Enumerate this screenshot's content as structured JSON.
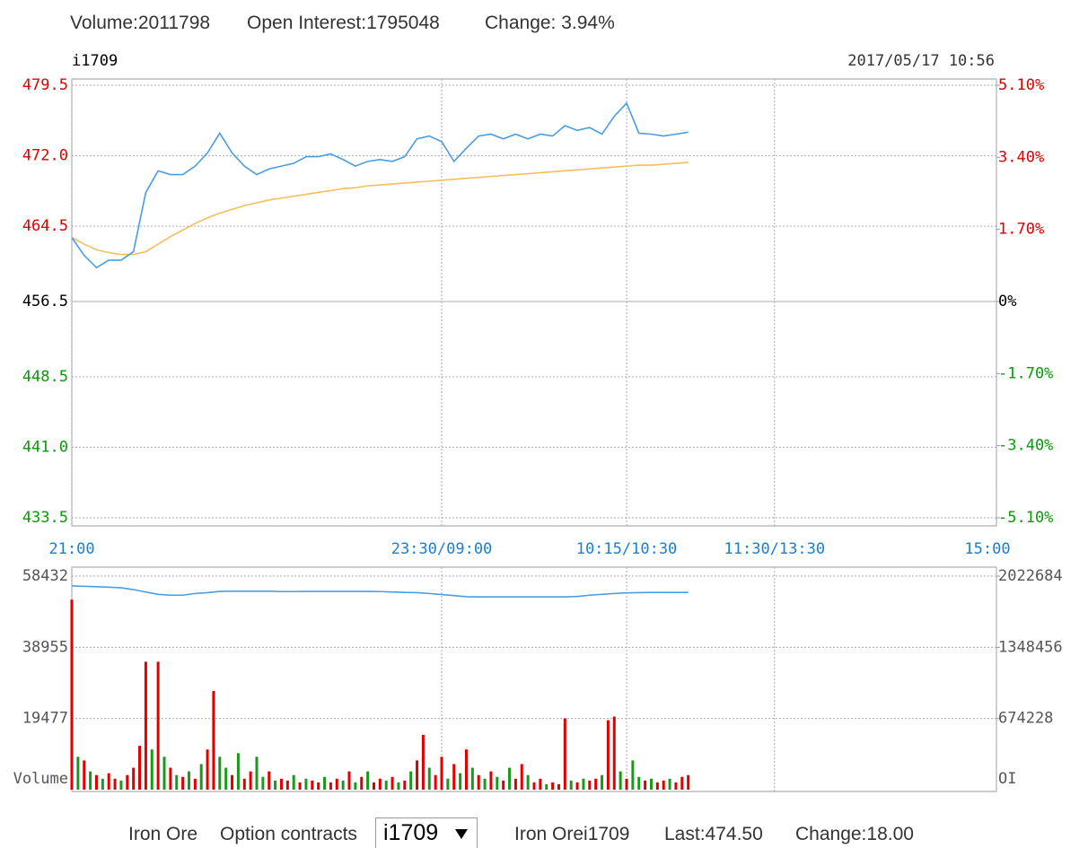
{
  "header": {
    "volume": "Volume:2011798",
    "open_interest": "Open Interest:1795048",
    "change": "Change: 3.94%"
  },
  "chart_data": [
    {
      "type": "line",
      "symbol": "i1709",
      "datetime": "2017/05/17 10:56",
      "x": [
        0,
        5,
        10,
        15,
        20,
        25,
        30,
        35,
        40,
        45,
        50,
        55,
        60,
        65,
        70,
        75,
        80,
        85,
        90,
        95,
        100,
        105,
        110,
        115,
        120,
        125,
        130,
        135,
        140,
        145,
        150,
        155,
        160,
        165,
        170,
        175,
        180,
        185,
        190,
        195,
        200,
        205,
        210,
        215,
        220,
        225,
        230,
        235,
        240,
        245,
        250
      ],
      "xlim": [
        0,
        375
      ],
      "xticks": [
        {
          "value": 0,
          "label": "21:00"
        },
        {
          "value": 150,
          "label": "23:30/09:00"
        },
        {
          "value": 225,
          "label": "10:15/10:30"
        },
        {
          "value": 285,
          "label": "11:30/13:30"
        },
        {
          "value": 375,
          "label": "15:00"
        }
      ],
      "ylim": [
        433.5,
        479.5
      ],
      "yticks": [
        433.5,
        {
          "value": 441,
          "label": "441.0"
        },
        448.5,
        456.5,
        464.5,
        {
          "value": 472,
          "label": "472.0"
        },
        479.5
      ],
      "y2lim": [
        -5.1,
        5.1
      ],
      "y2ticks": [
        {
          "value": -5.1,
          "label": "-5.10%"
        },
        {
          "value": -3.4,
          "label": "-3.40%"
        },
        {
          "value": -1.7,
          "label": "-1.70%"
        },
        {
          "value": 0,
          "label": "0%"
        },
        {
          "value": 1.7,
          "label": "1.70%"
        },
        {
          "value": 3.4,
          "label": "3.40%"
        },
        {
          "value": 5.1,
          "label": "5.10%"
        }
      ],
      "grid": true,
      "series": [
        {
          "color": "#4a9de0",
          "values": [
            463.3,
            461.4,
            460.1,
            460.9,
            460.9,
            461.8,
            468.1,
            470.4,
            470.0,
            470.0,
            470.9,
            472.3,
            474.4,
            472.3,
            470.9,
            470.0,
            470.6,
            470.9,
            471.2,
            471.9,
            471.9,
            472.2,
            471.6,
            470.9,
            471.4,
            471.6,
            471.4,
            471.9,
            473.8,
            474.1,
            473.5,
            471.4,
            472.8,
            474.1,
            474.3,
            473.8,
            474.3,
            473.8,
            474.3,
            474.1,
            475.2,
            474.7,
            475.0,
            474.3,
            476.2,
            477.6,
            474.4,
            474.3,
            474.1,
            474.3,
            474.5
          ]
        },
        {
          "color": "#f5bf5f",
          "values": [
            463.3,
            462.6,
            462.0,
            461.7,
            461.5,
            461.5,
            461.8,
            462.6,
            463.4,
            464.1,
            464.8,
            465.4,
            465.9,
            466.3,
            466.7,
            467.0,
            467.3,
            467.5,
            467.7,
            467.9,
            468.1,
            468.3,
            468.5,
            468.6,
            468.8,
            468.9,
            469.0,
            469.1,
            469.2,
            469.3,
            469.4,
            469.5,
            469.6,
            469.7,
            469.8,
            469.9,
            470.0,
            470.1,
            470.2,
            470.3,
            470.4,
            470.5,
            470.6,
            470.7,
            470.8,
            470.9,
            471.0,
            471.0,
            471.1,
            471.2,
            471.3
          ]
        }
      ]
    },
    {
      "type": "bar",
      "x": [
        0,
        2.5,
        5,
        7.5,
        10,
        12.5,
        15,
        17.5,
        20,
        22.5,
        25,
        27.5,
        30,
        32.5,
        35,
        37.5,
        40,
        42.5,
        45,
        47.5,
        50,
        52.5,
        55,
        57.5,
        60,
        62.5,
        65,
        67.5,
        70,
        72.5,
        75,
        77.5,
        80,
        82.5,
        85,
        87.5,
        90,
        92.5,
        95,
        97.5,
        100,
        102.5,
        105,
        107.5,
        110,
        112.5,
        115,
        117.5,
        120,
        122.5,
        125,
        127.5,
        130,
        132.5,
        135,
        137.5,
        140,
        142.5,
        145,
        147.5,
        150,
        152.5,
        155,
        157.5,
        160,
        162.5,
        165,
        167.5,
        170,
        172.5,
        175,
        177.5,
        180,
        182.5,
        185,
        187.5,
        190,
        192.5,
        195,
        197.5,
        200,
        202.5,
        205,
        207.5,
        210,
        212.5,
        215,
        217.5,
        220,
        222.5,
        225,
        227.5,
        230,
        232.5,
        235,
        237.5,
        240,
        242.5,
        245,
        247.5,
        250
      ],
      "values": [
        52000,
        9000,
        8000,
        5000,
        4000,
        3000,
        4500,
        3000,
        2500,
        4000,
        6000,
        12000,
        35000,
        11000,
        35000,
        9000,
        6000,
        4000,
        3500,
        5000,
        3000,
        7000,
        11000,
        27000,
        9000,
        6000,
        4000,
        10000,
        3000,
        5000,
        9000,
        3500,
        5000,
        2500,
        3000,
        2500,
        4000,
        2000,
        3000,
        2500,
        2000,
        3500,
        2000,
        3000,
        2500,
        5000,
        2000,
        3500,
        5000,
        2000,
        3000,
        2500,
        3500,
        2000,
        2500,
        5000,
        8000,
        15000,
        6000,
        4000,
        9000,
        3000,
        7000,
        4500,
        11000,
        6000,
        4000,
        3000,
        5000,
        3500,
        2500,
        6000,
        3000,
        7000,
        4000,
        2000,
        3000,
        1500,
        2000,
        1500,
        19500,
        2500,
        2000,
        3000,
        2500,
        3000,
        4000,
        19000,
        20000,
        5000,
        3000,
        8000,
        3500,
        2500,
        3000,
        2000,
        2500,
        3000,
        2000,
        3500,
        4000
      ],
      "colors": [
        "#e00000",
        "#1a9a1a",
        "#e00000",
        "#1a9a1a",
        "#e00000",
        "#1a9a1a",
        "#e00000",
        "#e00000",
        "#1a9a1a",
        "#e00000",
        "#e00000",
        "#e00000",
        "#e00000",
        "#1a9a1a",
        "#e00000",
        "#1a9a1a",
        "#e00000",
        "#1a9a1a",
        "#e00000",
        "#1a9a1a",
        "#e00000",
        "#1a9a1a",
        "#e00000",
        "#e00000",
        "#1a9a1a",
        "#1a9a1a",
        "#e00000",
        "#1a9a1a",
        "#e00000",
        "#e00000",
        "#1a9a1a",
        "#1a9a1a",
        "#e00000",
        "#1a9a1a",
        "#e00000",
        "#e00000",
        "#1a9a1a",
        "#e00000",
        "#1a9a1a",
        "#e00000",
        "#e00000",
        "#1a9a1a",
        "#e00000",
        "#e00000",
        "#1a9a1a",
        "#e00000",
        "#1a9a1a",
        "#e00000",
        "#1a9a1a",
        "#e00000",
        "#e00000",
        "#1a9a1a",
        "#e00000",
        "#1a9a1a",
        "#e00000",
        "#1a9a1a",
        "#e00000",
        "#e00000",
        "#1a9a1a",
        "#e00000",
        "#e00000",
        "#1a9a1a",
        "#e00000",
        "#1a9a1a",
        "#e00000",
        "#1a9a1a",
        "#e00000",
        "#1a9a1a",
        "#e00000",
        "#1a9a1a",
        "#e00000",
        "#1a9a1a",
        "#e00000",
        "#e00000",
        "#1a9a1a",
        "#e00000",
        "#e00000",
        "#1a9a1a",
        "#e00000",
        "#e00000",
        "#e00000",
        "#1a9a1a",
        "#e00000",
        "#1a9a1a",
        "#e00000",
        "#e00000",
        "#1a9a1a",
        "#e00000",
        "#e00000",
        "#1a9a1a",
        "#e00000",
        "#1a9a1a",
        "#1a9a1a",
        "#e00000",
        "#1a9a1a",
        "#e00000",
        "#e00000",
        "#1a9a1a",
        "#e00000",
        "#e00000",
        "#e00000"
      ],
      "xlim": [
        0,
        375
      ],
      "ylim": [
        0,
        58432
      ],
      "yticks": [
        19477,
        38955,
        58432
      ],
      "y_label": "Volume",
      "y2lim": [
        0,
        2022684
      ],
      "y2ticks": [
        674228,
        1348456,
        2022684
      ],
      "y2_label": "OI",
      "grid": true,
      "line": {
        "color": "#4a9de0",
        "axis": "y2",
        "x": [
          0,
          5,
          10,
          15,
          20,
          25,
          30,
          35,
          40,
          45,
          50,
          55,
          60,
          65,
          70,
          75,
          80,
          85,
          90,
          95,
          100,
          105,
          110,
          115,
          120,
          125,
          130,
          135,
          140,
          145,
          150,
          155,
          160,
          165,
          170,
          175,
          180,
          185,
          190,
          195,
          200,
          205,
          210,
          215,
          220,
          225,
          230,
          235,
          240,
          245,
          250
        ],
        "values": [
          1930000,
          1926000,
          1922000,
          1918000,
          1912000,
          1895000,
          1872000,
          1850000,
          1842000,
          1842000,
          1858000,
          1866000,
          1878000,
          1880000,
          1880000,
          1880000,
          1880000,
          1876000,
          1876000,
          1878000,
          1878000,
          1878000,
          1878000,
          1878000,
          1878000,
          1876000,
          1872000,
          1868000,
          1866000,
          1858000,
          1848000,
          1838000,
          1828000,
          1826000,
          1826000,
          1826000,
          1826000,
          1826000,
          1826000,
          1826000,
          1826000,
          1830000,
          1842000,
          1850000,
          1858000,
          1864000,
          1866000,
          1868000,
          1868000,
          1868000,
          1868000
        ]
      }
    }
  ],
  "footer": {
    "product": "Iron Ore",
    "option_label": "Option contracts",
    "contract": "i1709",
    "quote_name": "Iron Orei1709",
    "last": "Last:474.50",
    "change": "Change:18.00"
  }
}
